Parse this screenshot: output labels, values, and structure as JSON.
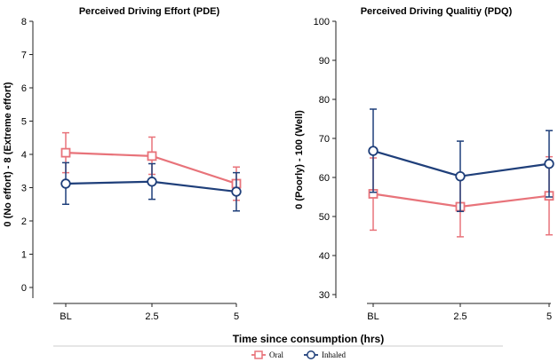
{
  "chart_data": [
    {
      "type": "line",
      "title": "Perceived Driving Effort (PDE)",
      "ylabel": "0 (No effort) - 8 (Extreme effort)",
      "xlabel": "",
      "categories": [
        "BL",
        "2.5",
        "5"
      ],
      "ylim": [
        0,
        8
      ],
      "yticks": [
        "0",
        "1",
        "2",
        "3",
        "4",
        "5",
        "6",
        "7",
        "8"
      ],
      "series": [
        {
          "name": "Oral",
          "values": [
            4.05,
            3.95,
            3.12
          ],
          "err_low": [
            3.45,
            3.4,
            2.62
          ],
          "err_high": [
            4.65,
            4.52,
            3.62
          ]
        },
        {
          "name": "Inhaled",
          "values": [
            3.12,
            3.18,
            2.88
          ],
          "err_low": [
            2.5,
            2.65,
            2.3
          ],
          "err_high": [
            3.75,
            3.72,
            3.45
          ]
        }
      ]
    },
    {
      "type": "line",
      "title": "Perceived Driving Qualitiy (PDQ)",
      "ylabel": "0 (Poorly) - 100 (Well)",
      "xlabel": "",
      "categories": [
        "BL",
        "2.5",
        "5"
      ],
      "ylim": [
        30,
        100
      ],
      "yticks": [
        "30",
        "40",
        "50",
        "60",
        "70",
        "80",
        "90",
        "100"
      ],
      "series": [
        {
          "name": "Oral",
          "values": [
            55.8,
            52.5,
            55.3
          ],
          "err_low": [
            46.5,
            44.8,
            45.3
          ],
          "err_high": [
            65.0,
            60.3,
            65.3
          ]
        },
        {
          "name": "Inhaled",
          "values": [
            66.8,
            60.3,
            63.5
          ],
          "err_low": [
            56.2,
            51.3,
            55.0
          ],
          "err_high": [
            77.5,
            69.3,
            72.0
          ]
        }
      ]
    }
  ],
  "shared_xlabel": "Time since consumption (hrs)",
  "legend": [
    {
      "name": "Oral",
      "marker": "square",
      "color": "#e8737a"
    },
    {
      "name": "Inhaled",
      "marker": "circle",
      "color": "#1f3f7a"
    }
  ],
  "colors": {
    "oral": "#e8737a",
    "inhaled": "#1f3f7a"
  }
}
